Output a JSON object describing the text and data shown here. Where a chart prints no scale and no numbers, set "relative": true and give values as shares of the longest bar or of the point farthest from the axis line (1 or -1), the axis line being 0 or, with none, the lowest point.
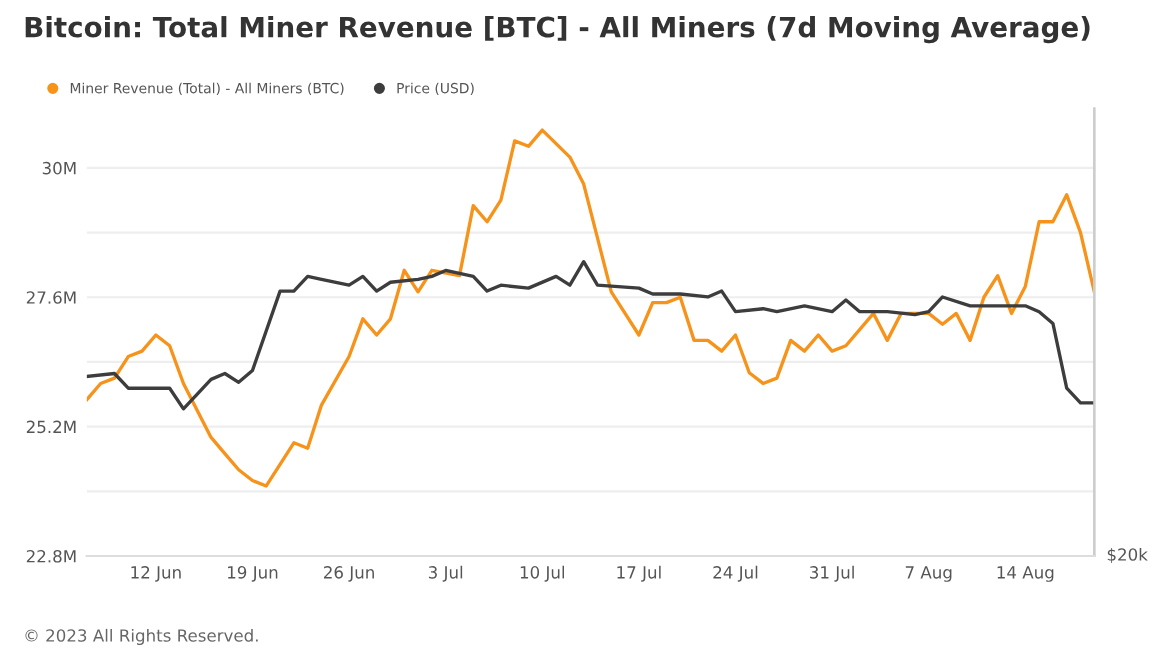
{
  "chart_data": [
    {
      "type": "line",
      "title": "Bitcoin: Total Miner Revenue [BTC] - All Miners (7d Moving Average)",
      "annotations": [
        "© 2023 All Rights Reserved."
      ],
      "legend": "top left",
      "grid": "y",
      "xlim": [
        "2023-06-07",
        "2023-08-19"
      ],
      "xticks": [
        {
          "value": "2023-06-12",
          "label": "12 Jun"
        },
        {
          "value": "2023-06-19",
          "label": "19 Jun"
        },
        {
          "value": "2023-06-26",
          "label": "26 Jun"
        },
        {
          "value": "2023-07-03",
          "label": "3 Jul"
        },
        {
          "value": "2023-07-10",
          "label": "10 Jul"
        },
        {
          "value": "2023-07-17",
          "label": "17 Jul"
        },
        {
          "value": "2023-07-24",
          "label": "24 Jul"
        },
        {
          "value": "2023-07-31",
          "label": "31 Jul"
        },
        {
          "value": "2023-08-07",
          "label": "7 Aug"
        },
        {
          "value": "2023-08-14",
          "label": "14 Aug"
        }
      ],
      "ylim": [
        22800000,
        31100000
      ],
      "yticks": [
        {
          "value": 22800000,
          "label": "22.8M"
        },
        {
          "value": 24000000,
          "label": null
        },
        {
          "value": 25200000,
          "label": "25.2M"
        },
        {
          "value": 26400000,
          "label": null
        },
        {
          "value": 27600000,
          "label": "27.6M"
        },
        {
          "value": 28800000,
          "label": null
        },
        {
          "value": 30000000,
          "label": "30M"
        }
      ],
      "series": [
        {
          "name": "Miner Revenue (Total) - All Miners (BTC)",
          "color": "#f7931a",
          "x": [
            "2023-06-07",
            "2023-06-08",
            "2023-06-09",
            "2023-06-10",
            "2023-06-11",
            "2023-06-12",
            "2023-06-13",
            "2023-06-14",
            "2023-06-15",
            "2023-06-16",
            "2023-06-17",
            "2023-06-18",
            "2023-06-19",
            "2023-06-20",
            "2023-06-21",
            "2023-06-22",
            "2023-06-23",
            "2023-06-24",
            "2023-06-26",
            "2023-06-27",
            "2023-06-28",
            "2023-06-29",
            "2023-06-30",
            "2023-07-01",
            "2023-07-02",
            "2023-07-04",
            "2023-07-05",
            "2023-07-06",
            "2023-07-07",
            "2023-07-08",
            "2023-07-09",
            "2023-07-10",
            "2023-07-12",
            "2023-07-13",
            "2023-07-15",
            "2023-07-16",
            "2023-07-17",
            "2023-07-18",
            "2023-07-19",
            "2023-07-20",
            "2023-07-21",
            "2023-07-22",
            "2023-07-23",
            "2023-07-24",
            "2023-07-25",
            "2023-07-26",
            "2023-07-27",
            "2023-07-28",
            "2023-07-29",
            "2023-07-30",
            "2023-07-31",
            "2023-08-01",
            "2023-08-03",
            "2023-08-04",
            "2023-08-05",
            "2023-08-06",
            "2023-08-07",
            "2023-08-08",
            "2023-08-09",
            "2023-08-10",
            "2023-08-11",
            "2023-08-12",
            "2023-08-13",
            "2023-08-14",
            "2023-08-15",
            "2023-08-16",
            "2023-08-17",
            "2023-08-18",
            "2023-08-19"
          ],
          "values": [
            25700000,
            26000000,
            26100000,
            26500000,
            26600000,
            26900000,
            26700000,
            26000000,
            25500000,
            25000000,
            24700000,
            24400000,
            24200000,
            24100000,
            24500000,
            24900000,
            24800000,
            25600000,
            26500000,
            27200000,
            26900000,
            27200000,
            28100000,
            27700000,
            28100000,
            28000000,
            29300000,
            29000000,
            29400000,
            30500000,
            30400000,
            30700000,
            30200000,
            29700000,
            27700000,
            27300000,
            26900000,
            27500000,
            27500000,
            27600000,
            26800000,
            26800000,
            26600000,
            26900000,
            26200000,
            26000000,
            26100000,
            26800000,
            26600000,
            26900000,
            26600000,
            26700000,
            27300000,
            26800000,
            27300000,
            27300000,
            27300000,
            27100000,
            27300000,
            26800000,
            27600000,
            28000000,
            27300000,
            27800000,
            29000000,
            29000000,
            29500000,
            28800000,
            27700000
          ]
        }
      ]
    },
    {
      "type": "line",
      "relative": true,
      "annotations": [
        "$20k"
      ],
      "legend": "top left",
      "xlim": [
        "2023-06-07",
        "2023-08-19"
      ],
      "series": [
        {
          "name": "Price (USD)",
          "color": "#3d3d3d",
          "x": [
            "2023-06-07",
            "2023-06-09",
            "2023-06-10",
            "2023-06-13",
            "2023-06-14",
            "2023-06-16",
            "2023-06-17",
            "2023-06-18",
            "2023-06-19",
            "2023-06-21",
            "2023-06-22",
            "2023-06-23",
            "2023-06-24",
            "2023-06-26",
            "2023-06-27",
            "2023-06-28",
            "2023-06-29",
            "2023-07-01",
            "2023-07-02",
            "2023-07-03",
            "2023-07-05",
            "2023-07-06",
            "2023-07-07",
            "2023-07-09",
            "2023-07-11",
            "2023-07-12",
            "2023-07-13",
            "2023-07-14",
            "2023-07-17",
            "2023-07-18",
            "2023-07-20",
            "2023-07-22",
            "2023-07-23",
            "2023-07-24",
            "2023-07-26",
            "2023-07-27",
            "2023-07-29",
            "2023-07-31",
            "2023-08-01",
            "2023-08-02",
            "2023-08-04",
            "2023-08-06",
            "2023-08-07",
            "2023-08-08",
            "2023-08-10",
            "2023-08-13",
            "2023-08-14",
            "2023-08-15",
            "2023-08-16",
            "2023-08-17",
            "2023-08-18",
            "2023-08-19"
          ],
          "values": [
            0.61,
            0.62,
            0.57,
            0.57,
            0.5,
            0.6,
            0.62,
            0.59,
            0.63,
            0.9,
            0.9,
            0.95,
            0.94,
            0.92,
            0.95,
            0.9,
            0.93,
            0.94,
            0.95,
            0.97,
            0.95,
            0.9,
            0.92,
            0.91,
            0.95,
            0.92,
            1,
            0.92,
            0.91,
            0.89,
            0.89,
            0.88,
            0.9,
            0.83,
            0.84,
            0.83,
            0.85,
            0.83,
            0.87,
            0.83,
            0.83,
            0.82,
            0.83,
            0.88,
            0.85,
            0.85,
            0.85,
            0.83,
            0.79,
            0.57,
            0.52,
            0.52
          ]
        }
      ]
    }
  ]
}
